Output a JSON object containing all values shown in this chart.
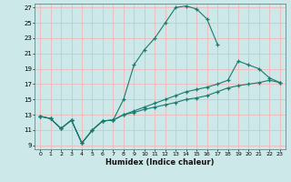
{
  "xlabel": "Humidex (Indice chaleur)",
  "bg_color": "#cce8e8",
  "grid_color": "#f0b8b8",
  "line_color": "#1a7a6e",
  "xlim": [
    -0.5,
    23.5
  ],
  "ylim": [
    8.5,
    27.5
  ],
  "xticks": [
    0,
    1,
    2,
    3,
    4,
    5,
    6,
    7,
    8,
    9,
    10,
    11,
    12,
    13,
    14,
    15,
    16,
    17,
    18,
    19,
    20,
    21,
    22,
    23
  ],
  "yticks": [
    9,
    11,
    13,
    15,
    17,
    19,
    21,
    23,
    25,
    27
  ],
  "line1": {
    "x": [
      0,
      1,
      2,
      3,
      4,
      5,
      6,
      7,
      8,
      9,
      10,
      11,
      12,
      13,
      14,
      15,
      16,
      17
    ],
    "y": [
      12.8,
      12.5,
      11.2,
      12.3,
      9.3,
      11.0,
      12.2,
      12.3,
      15.0,
      19.5,
      21.5,
      23.0,
      25.0,
      27.0,
      27.2,
      26.8,
      25.5,
      22.2
    ]
  },
  "line2": {
    "x": [
      0,
      1,
      2,
      3,
      4,
      5,
      6,
      7,
      8,
      9,
      10,
      11,
      12,
      13,
      14,
      15,
      16,
      17,
      18,
      19,
      20,
      21,
      22,
      23
    ],
    "y": [
      12.8,
      12.5,
      11.2,
      12.3,
      9.3,
      11.0,
      12.2,
      12.3,
      13.0,
      13.5,
      14.0,
      14.5,
      15.0,
      15.5,
      16.0,
      16.3,
      16.6,
      17.0,
      17.5,
      20.0,
      19.5,
      19.0,
      17.8,
      17.2
    ]
  },
  "line3": {
    "x": [
      0,
      1,
      2,
      3,
      4,
      5,
      6,
      7,
      8,
      9,
      10,
      11,
      12,
      13,
      14,
      15,
      16,
      17,
      18,
      19,
      20,
      21,
      22,
      23
    ],
    "y": [
      12.8,
      12.5,
      11.2,
      12.3,
      9.3,
      11.0,
      12.2,
      12.3,
      13.0,
      13.3,
      13.7,
      14.0,
      14.3,
      14.6,
      15.0,
      15.2,
      15.5,
      16.0,
      16.5,
      16.8,
      17.0,
      17.2,
      17.5,
      17.2
    ]
  }
}
